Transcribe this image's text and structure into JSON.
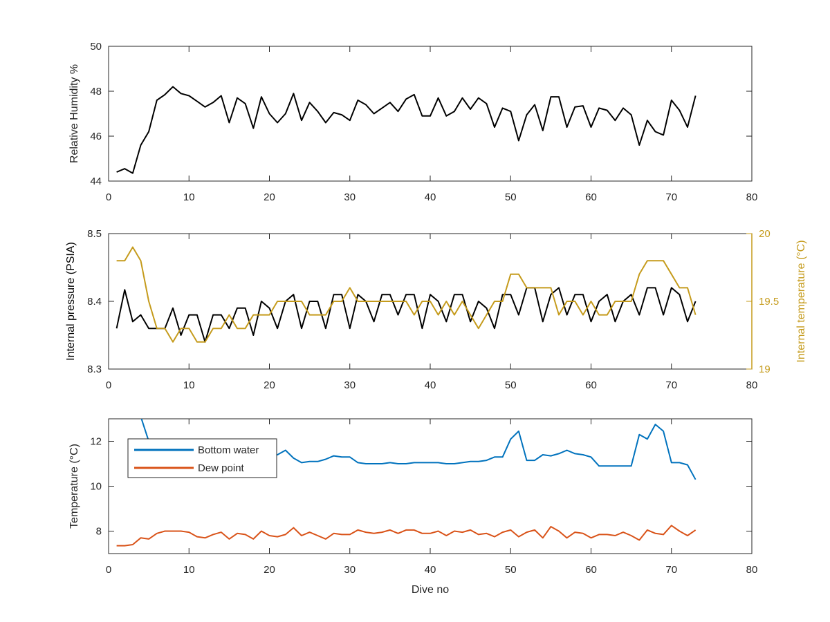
{
  "figure": {
    "xlabel": "Dive no",
    "colors": {
      "black": "#000000",
      "blue": "#0072BD",
      "orange": "#D95319",
      "gold": "#C59B1C",
      "axis": "#262626"
    }
  },
  "chart_data": [
    {
      "type": "line",
      "ylabel": "Relative Humidity %",
      "xlim": [
        0,
        80
      ],
      "ylim": [
        44,
        50
      ],
      "xticks": [
        "0",
        "10",
        "20",
        "30",
        "40",
        "50",
        "60",
        "70",
        "80"
      ],
      "yticks": [
        "44",
        "46",
        "48",
        "50"
      ],
      "grid": false,
      "series": [
        {
          "color": "#000000",
          "x": [
            1,
            2,
            3,
            4,
            5,
            6,
            7,
            8,
            9,
            10,
            11,
            12,
            13,
            14,
            15,
            16,
            17,
            18,
            19,
            20,
            21,
            22,
            23,
            24,
            25,
            26,
            27,
            28,
            29,
            30,
            31,
            32,
            33,
            34,
            35,
            36,
            37,
            38,
            39,
            40,
            41,
            42,
            43,
            44,
            45,
            46,
            47,
            48,
            49,
            50,
            51,
            52,
            53,
            54,
            55,
            56,
            57,
            58,
            59,
            60,
            61,
            62,
            63,
            64,
            65,
            66,
            67,
            68,
            69,
            70,
            71,
            72,
            73
          ],
          "values": [
            44.4,
            44.55,
            44.35,
            45.6,
            46.2,
            47.6,
            47.85,
            48.2,
            47.9,
            47.8,
            47.55,
            47.3,
            47.5,
            47.8,
            46.6,
            47.7,
            47.45,
            46.35,
            47.75,
            47.0,
            46.6,
            47.0,
            47.9,
            46.7,
            47.5,
            47.1,
            46.6,
            47.05,
            46.95,
            46.7,
            47.6,
            47.4,
            47.0,
            47.25,
            47.5,
            47.1,
            47.65,
            47.85,
            46.9,
            46.9,
            47.7,
            46.9,
            47.1,
            47.7,
            47.2,
            47.7,
            47.45,
            46.4,
            47.25,
            47.1,
            45.8,
            46.95,
            47.4,
            46.25,
            47.75,
            47.75,
            46.4,
            47.3,
            47.35,
            46.4,
            47.25,
            47.15,
            46.7,
            47.25,
            46.95,
            45.6,
            46.7,
            46.2,
            46.05,
            47.6,
            47.15,
            46.4,
            47.8
          ]
        }
      ]
    },
    {
      "type": "line",
      "ylabel": "Internal pressure (PSIA)",
      "y2label": "Internal temperature (°C)",
      "xlim": [
        0,
        80
      ],
      "ylim": [
        8.3,
        8.5
      ],
      "y2lim": [
        19,
        20
      ],
      "xticks": [
        "0",
        "10",
        "20",
        "30",
        "40",
        "50",
        "60",
        "70",
        "80"
      ],
      "yticks": [
        "8.3",
        "8.4",
        "8.5"
      ],
      "y2ticks": [
        "19",
        "19.5",
        "20"
      ],
      "grid": false,
      "series": [
        {
          "axis": "left",
          "color": "#000000",
          "x": [
            1,
            2,
            3,
            4,
            5,
            6,
            7,
            8,
            9,
            10,
            11,
            12,
            13,
            14,
            15,
            16,
            17,
            18,
            19,
            20,
            21,
            22,
            23,
            24,
            25,
            26,
            27,
            28,
            29,
            30,
            31,
            32,
            33,
            34,
            35,
            36,
            37,
            38,
            39,
            40,
            41,
            42,
            43,
            44,
            45,
            46,
            47,
            48,
            49,
            50,
            51,
            52,
            53,
            54,
            55,
            56,
            57,
            58,
            59,
            60,
            61,
            62,
            63,
            64,
            65,
            66,
            67,
            68,
            69,
            70,
            71,
            72,
            73
          ],
          "values": [
            8.36,
            8.417,
            8.37,
            8.38,
            8.36,
            8.36,
            8.36,
            8.39,
            8.35,
            8.38,
            8.38,
            8.34,
            8.38,
            8.38,
            8.36,
            8.39,
            8.39,
            8.35,
            8.4,
            8.39,
            8.36,
            8.4,
            8.41,
            8.36,
            8.4,
            8.4,
            8.36,
            8.41,
            8.41,
            8.36,
            8.41,
            8.4,
            8.37,
            8.41,
            8.41,
            8.38,
            8.41,
            8.41,
            8.36,
            8.41,
            8.4,
            8.37,
            8.41,
            8.41,
            8.37,
            8.4,
            8.39,
            8.36,
            8.41,
            8.41,
            8.38,
            8.42,
            8.42,
            8.37,
            8.41,
            8.42,
            8.38,
            8.41,
            8.41,
            8.37,
            8.4,
            8.41,
            8.37,
            8.4,
            8.41,
            8.38,
            8.42,
            8.42,
            8.38,
            8.42,
            8.41,
            8.37,
            8.4
          ]
        },
        {
          "axis": "right",
          "color": "#C59B1C",
          "x": [
            1,
            2,
            3,
            4,
            5,
            6,
            7,
            8,
            9,
            10,
            11,
            12,
            13,
            14,
            15,
            16,
            17,
            18,
            19,
            20,
            21,
            22,
            23,
            24,
            25,
            26,
            27,
            28,
            29,
            30,
            31,
            32,
            33,
            34,
            35,
            36,
            37,
            38,
            39,
            40,
            41,
            42,
            43,
            44,
            45,
            46,
            47,
            48,
            49,
            50,
            51,
            52,
            53,
            54,
            55,
            56,
            57,
            58,
            59,
            60,
            61,
            62,
            63,
            64,
            65,
            66,
            67,
            68,
            69,
            70,
            71,
            72,
            73
          ],
          "values": [
            19.8,
            19.8,
            19.9,
            19.8,
            19.5,
            19.3,
            19.3,
            19.2,
            19.3,
            19.3,
            19.2,
            19.2,
            19.3,
            19.3,
            19.4,
            19.3,
            19.3,
            19.4,
            19.4,
            19.4,
            19.5,
            19.5,
            19.5,
            19.5,
            19.4,
            19.4,
            19.4,
            19.5,
            19.5,
            19.6,
            19.5,
            19.5,
            19.5,
            19.5,
            19.5,
            19.5,
            19.5,
            19.4,
            19.5,
            19.5,
            19.4,
            19.5,
            19.4,
            19.5,
            19.4,
            19.3,
            19.4,
            19.5,
            19.5,
            19.7,
            19.7,
            19.6,
            19.6,
            19.6,
            19.6,
            19.4,
            19.5,
            19.5,
            19.4,
            19.5,
            19.4,
            19.4,
            19.5,
            19.5,
            19.5,
            19.7,
            19.8,
            19.8,
            19.8,
            19.7,
            19.6,
            19.6,
            19.4
          ]
        }
      ]
    },
    {
      "type": "line",
      "ylabel": "Temperature (°C)",
      "xlabel": "Dive no",
      "xlim": [
        0,
        80
      ],
      "ylim": [
        7,
        13
      ],
      "xticks": [
        "0",
        "10",
        "20",
        "30",
        "40",
        "50",
        "60",
        "70",
        "80"
      ],
      "yticks": [
        "8",
        "10",
        "12"
      ],
      "grid": false,
      "legend": "top-left",
      "series": [
        {
          "name": "Bottom water",
          "color": "#0072BD",
          "x": [
            4,
            5,
            6,
            7,
            8,
            9,
            10,
            11,
            12,
            13,
            14,
            15,
            16,
            17,
            18,
            19,
            20,
            21,
            22,
            23,
            24,
            25,
            26,
            27,
            28,
            29,
            30,
            31,
            32,
            33,
            34,
            35,
            36,
            37,
            38,
            39,
            40,
            41,
            42,
            43,
            44,
            45,
            46,
            47,
            48,
            49,
            50,
            51,
            52,
            53,
            54,
            55,
            56,
            57,
            58,
            59,
            60,
            61,
            62,
            63,
            64,
            65,
            66,
            67,
            68,
            69,
            70,
            71,
            72,
            73
          ],
          "values": [
            13.1,
            12.0,
            11.6,
            11.5,
            11.4,
            11.35,
            11.3,
            11.25,
            11.3,
            11.25,
            11.3,
            11.25,
            11.3,
            11.25,
            11.3,
            11.25,
            11.35,
            11.4,
            11.6,
            11.25,
            11.05,
            11.1,
            11.1,
            11.2,
            11.35,
            11.3,
            11.3,
            11.05,
            11.0,
            11.0,
            11.0,
            11.05,
            11.0,
            11.0,
            11.05,
            11.05,
            11.05,
            11.05,
            11.0,
            11.0,
            11.05,
            11.1,
            11.1,
            11.15,
            11.3,
            11.3,
            12.1,
            12.45,
            11.15,
            11.15,
            11.4,
            11.35,
            11.45,
            11.6,
            11.45,
            11.4,
            11.3,
            10.9,
            10.9,
            10.9,
            10.9,
            10.9,
            12.3,
            12.1,
            12.75,
            12.45,
            11.05,
            11.05,
            10.95,
            10.3
          ]
        },
        {
          "name": "Dew point",
          "color": "#D95319",
          "x": [
            1,
            2,
            3,
            4,
            5,
            6,
            7,
            8,
            9,
            10,
            11,
            12,
            13,
            14,
            15,
            16,
            17,
            18,
            19,
            20,
            21,
            22,
            23,
            24,
            25,
            26,
            27,
            28,
            29,
            30,
            31,
            32,
            33,
            34,
            35,
            36,
            37,
            38,
            39,
            40,
            41,
            42,
            43,
            44,
            45,
            46,
            47,
            48,
            49,
            50,
            51,
            52,
            53,
            54,
            55,
            56,
            57,
            58,
            59,
            60,
            61,
            62,
            63,
            64,
            65,
            66,
            67,
            68,
            69,
            70,
            71,
            72,
            73
          ],
          "values": [
            7.35,
            7.35,
            7.4,
            7.7,
            7.65,
            7.9,
            8.0,
            8.0,
            8.0,
            7.95,
            7.75,
            7.7,
            7.85,
            7.95,
            7.65,
            7.9,
            7.85,
            7.65,
            8.0,
            7.8,
            7.75,
            7.85,
            8.15,
            7.8,
            7.95,
            7.8,
            7.65,
            7.9,
            7.85,
            7.85,
            8.05,
            7.95,
            7.9,
            7.95,
            8.05,
            7.9,
            8.05,
            8.05,
            7.9,
            7.9,
            8.0,
            7.8,
            8.0,
            7.95,
            8.05,
            7.85,
            7.9,
            7.75,
            7.95,
            8.05,
            7.75,
            7.95,
            8.05,
            7.7,
            8.2,
            8.0,
            7.7,
            7.95,
            7.9,
            7.7,
            7.85,
            7.85,
            7.8,
            7.95,
            7.8,
            7.6,
            8.05,
            7.9,
            7.85,
            8.25,
            8.0,
            7.8,
            8.05
          ]
        }
      ]
    }
  ]
}
